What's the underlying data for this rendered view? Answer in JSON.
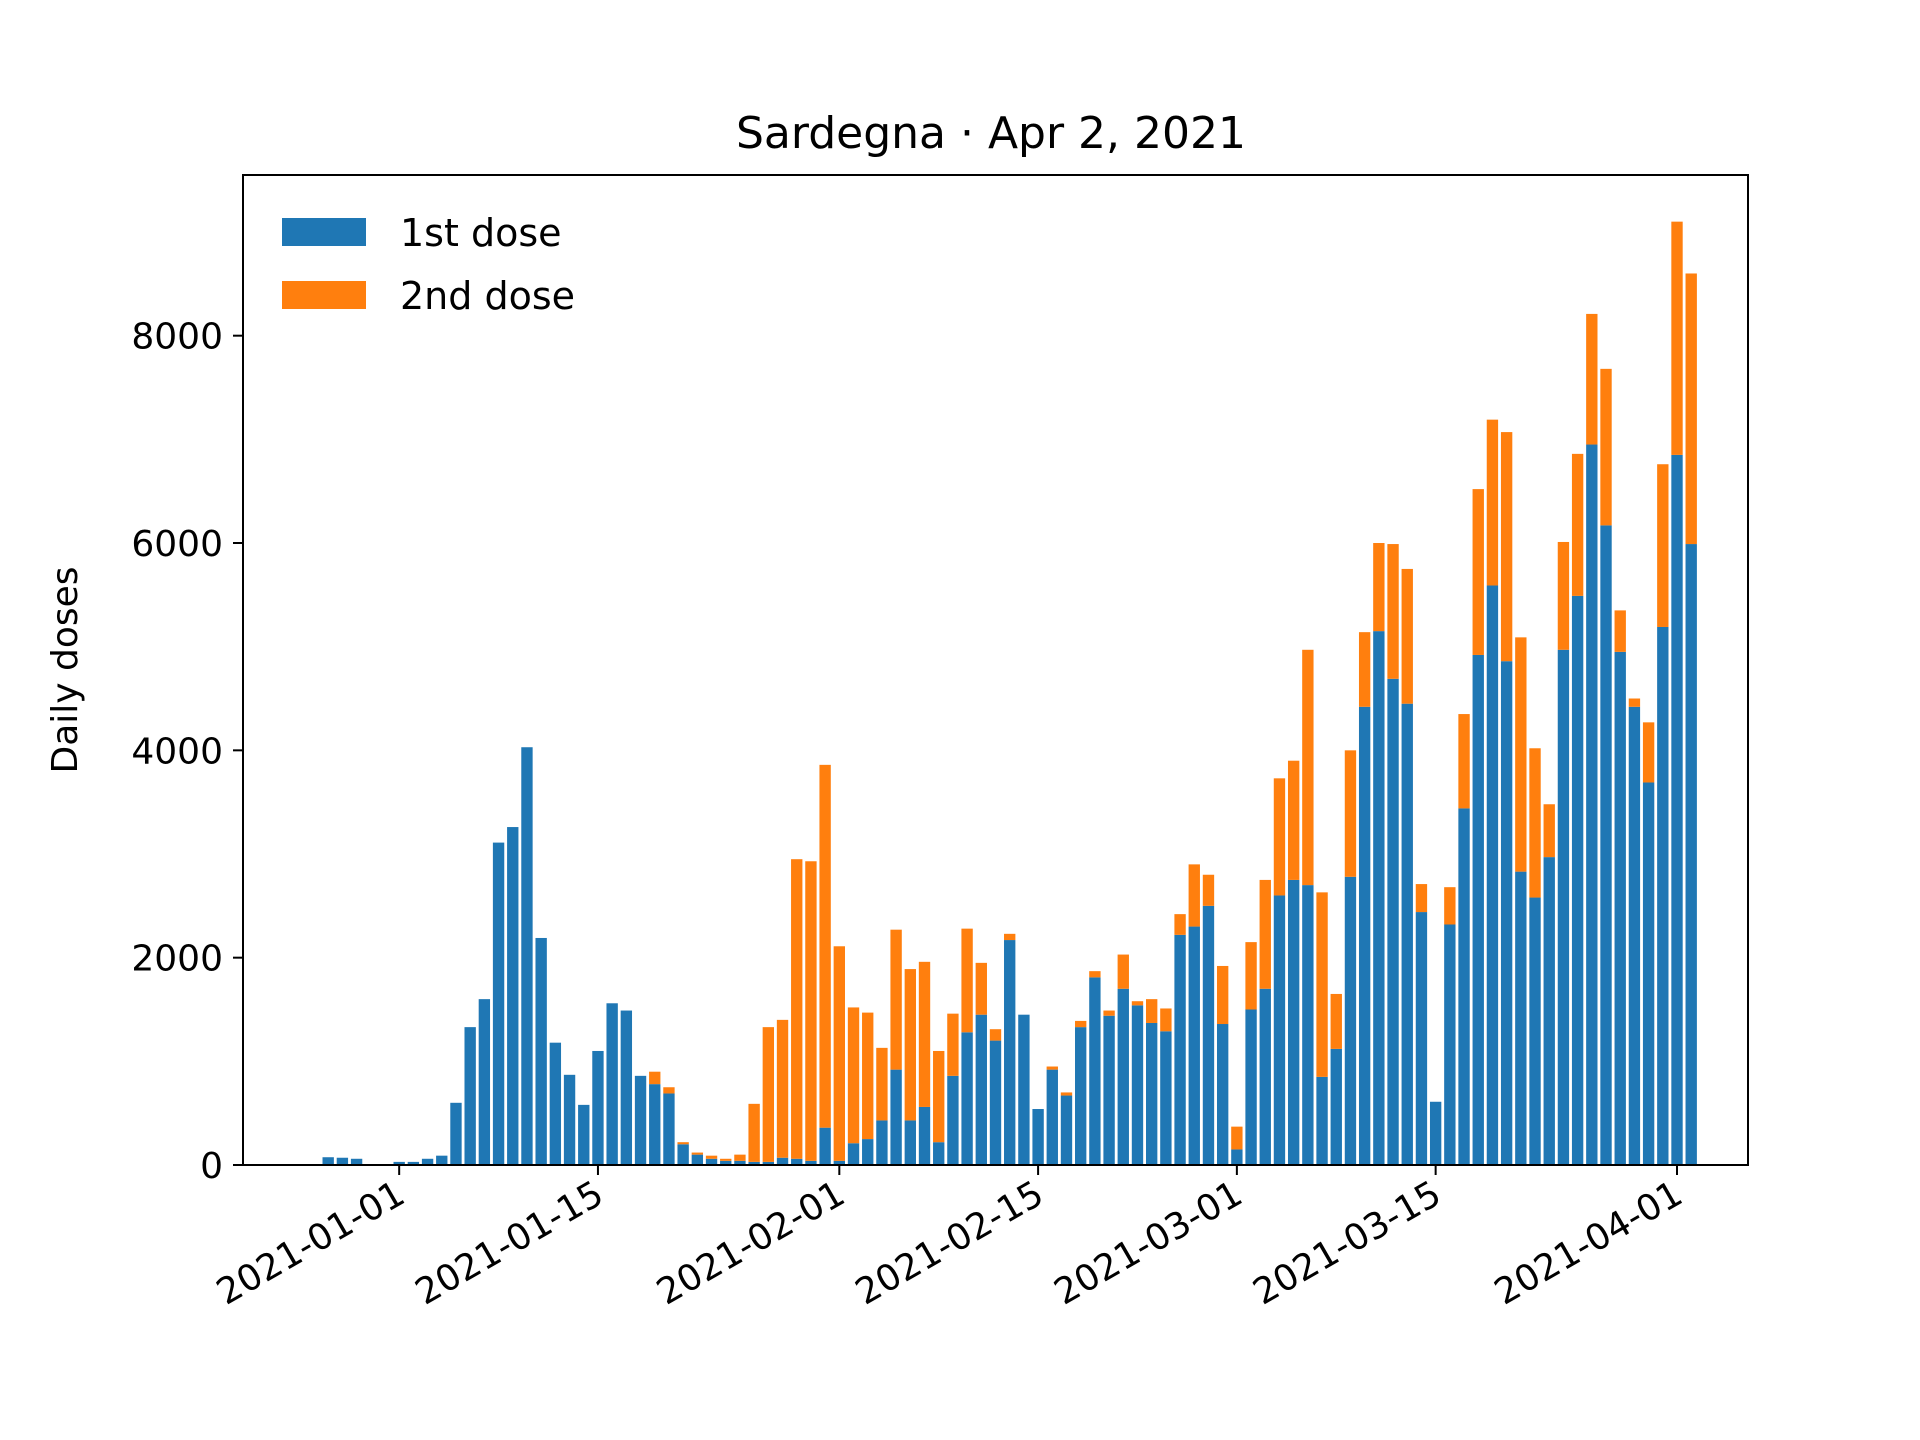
{
  "chart_data": {
    "type": "bar",
    "stacked": true,
    "title": "Sardegna · Apr 2, 2021",
    "xlabel": "",
    "ylabel": "Daily doses",
    "x_start_date": "2020-12-27",
    "x_range": [
      "2020-12-21",
      "2021-04-06"
    ],
    "ylim": [
      0,
      9550
    ],
    "y_ticks": [
      "0",
      "2000",
      "4000",
      "6000",
      "8000"
    ],
    "x_ticks": [
      {
        "label": "2021-01-01",
        "date": "2021-01-01"
      },
      {
        "label": "2021-01-15",
        "date": "2021-01-15"
      },
      {
        "label": "2021-02-01",
        "date": "2021-02-01"
      },
      {
        "label": "2021-02-15",
        "date": "2021-02-15"
      },
      {
        "label": "2021-03-01",
        "date": "2021-03-01"
      },
      {
        "label": "2021-03-15",
        "date": "2021-03-15"
      },
      {
        "label": "2021-04-01",
        "date": "2021-04-01"
      }
    ],
    "grid": false,
    "legend_position": "top-left",
    "colors": {
      "first": "#1f77b4",
      "second": "#ff7f0e"
    },
    "series": [
      {
        "name": "1st dose",
        "values": [
          75,
          70,
          60,
          0,
          0,
          30,
          30,
          60,
          90,
          600,
          1330,
          1600,
          3110,
          3260,
          4030,
          2190,
          1180,
          870,
          580,
          1100,
          1560,
          1490,
          860,
          780,
          690,
          200,
          100,
          60,
          40,
          40,
          30,
          30,
          70,
          60,
          40,
          360,
          40,
          210,
          250,
          430,
          920,
          430,
          560,
          220,
          860,
          1280,
          1450,
          1200,
          2170,
          1450,
          540,
          920,
          670,
          1330,
          1810,
          1440,
          1700,
          1540,
          1370,
          1290,
          2220,
          2300,
          2500,
          1360,
          150,
          1500,
          1700,
          2600,
          2750,
          2700,
          850,
          1120,
          2780,
          4420,
          5150,
          4690,
          4450,
          2440,
          610,
          2320,
          3440,
          4920,
          5590,
          4860,
          2830,
          2580,
          2970,
          4970,
          5490,
          6950,
          6170,
          4950,
          4420,
          3690,
          5190,
          6850,
          5990
        ]
      },
      {
        "name": "2nd dose",
        "values": [
          0,
          0,
          0,
          0,
          0,
          0,
          0,
          0,
          0,
          0,
          0,
          0,
          0,
          0,
          0,
          0,
          0,
          0,
          0,
          0,
          0,
          0,
          0,
          120,
          60,
          20,
          20,
          30,
          20,
          60,
          560,
          1300,
          1330,
          2890,
          2890,
          3500,
          2070,
          1310,
          1220,
          700,
          1350,
          1460,
          1400,
          880,
          600,
          1000,
          500,
          110,
          60,
          0,
          0,
          30,
          30,
          60,
          60,
          50,
          330,
          40,
          230,
          220,
          200,
          600,
          300,
          560,
          220,
          650,
          1050,
          1130,
          1150,
          2270,
          1780,
          530,
          1220,
          720,
          850,
          1300,
          1300,
          270,
          0,
          360,
          910,
          1600,
          1600,
          2210,
          2260,
          1440,
          510,
          1040,
          1370,
          1260,
          1510,
          400,
          80,
          580,
          1570,
          2250,
          2610
        ]
      }
    ]
  }
}
